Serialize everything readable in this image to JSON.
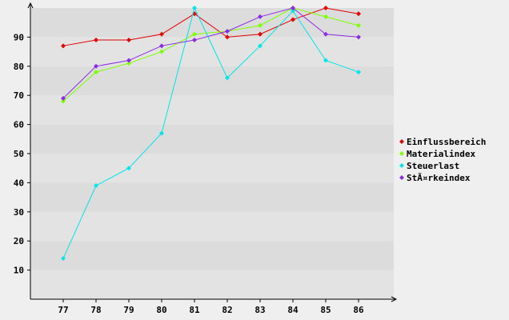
{
  "chart_data": {
    "type": "line",
    "title": "",
    "xlabel": "",
    "ylabel": "",
    "categories": [
      "77",
      "78",
      "79",
      "80",
      "81",
      "82",
      "83",
      "84",
      "85",
      "86"
    ],
    "ylim": [
      0,
      100
    ],
    "yticks": [
      10,
      20,
      30,
      40,
      50,
      60,
      70,
      80,
      90
    ],
    "grid": "horizontal bands",
    "legend_position": "right",
    "series": [
      {
        "name": "Einflussbereich",
        "color": "#e00000",
        "values": [
          87,
          89,
          89,
          91,
          98,
          90,
          91,
          96,
          100,
          98
        ]
      },
      {
        "name": "Materialindex",
        "color": "#7fff00",
        "values": [
          68,
          78,
          81,
          85,
          91,
          92,
          94,
          100,
          97,
          94
        ]
      },
      {
        "name": "Steuerlast",
        "color": "#00e5e5",
        "values": [
          14,
          39,
          45,
          57,
          100,
          76,
          87,
          99,
          82,
          78
        ]
      },
      {
        "name": "StÃ¤rkeindex",
        "color": "#8a2be2",
        "values": [
          69,
          80,
          82,
          87,
          89,
          92,
          97,
          100,
          91,
          90
        ]
      }
    ]
  }
}
